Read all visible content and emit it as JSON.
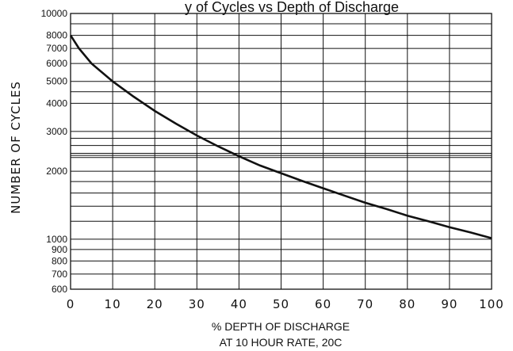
{
  "chart_data": {
    "type": "line",
    "title": "y of Cycles vs Depth of Discharge",
    "xlabel": [
      "% DEPTH OF DISCHARGE",
      "AT 10 HOUR RATE, 20C"
    ],
    "ylabel": "NUMBER  OF  CYCLES",
    "y_scale": "log",
    "xlim": [
      0,
      100
    ],
    "ylim": [
      600,
      10000
    ],
    "x_ticks": [
      0,
      10,
      20,
      30,
      40,
      50,
      60,
      70,
      80,
      90,
      100
    ],
    "x_tick_labels": [
      "0",
      "10",
      "20",
      "30",
      "40",
      "50",
      "60",
      "70",
      "80",
      "90",
      "100"
    ],
    "y_ticks": [
      600,
      700,
      800,
      900,
      1000,
      2000,
      3000,
      4000,
      5000,
      6000,
      7000,
      8000,
      10000
    ],
    "y_tick_labels": [
      "600",
      "700",
      "800",
      "900",
      "1000",
      "2000",
      "3000",
      "4000",
      "5000",
      "6000",
      "7000",
      "8000",
      "10000"
    ],
    "y_gridlines": [
      600,
      700,
      800,
      900,
      1000,
      1200,
      1400,
      1600,
      1800,
      2000,
      2300,
      2350,
      2400,
      2600,
      2800,
      3000,
      4000,
      4500,
      5000,
      6000,
      7000,
      8000,
      9000,
      10000
    ],
    "grid": true,
    "series": [
      {
        "x": [
          0,
          2,
          5,
          10,
          15,
          20,
          25,
          30,
          35,
          40,
          45,
          50,
          55,
          60,
          65,
          70,
          75,
          80,
          85,
          90,
          95,
          100
        ],
        "y": [
          8000,
          7000,
          6000,
          5000,
          4280,
          3700,
          3250,
          2880,
          2580,
          2330,
          2120,
          1960,
          1810,
          1680,
          1560,
          1450,
          1360,
          1270,
          1200,
          1130,
          1070,
          1010
        ]
      }
    ]
  }
}
